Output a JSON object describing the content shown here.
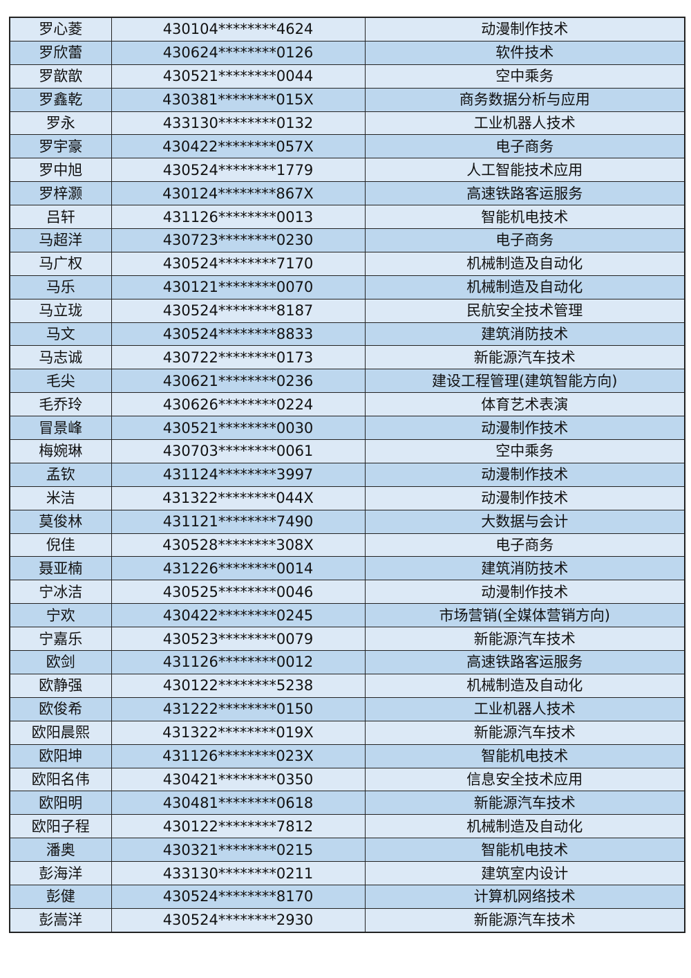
{
  "rows": [
    [
      "罗心菱",
      "430104********4624",
      "动漫制作技术"
    ],
    [
      "罗欣蕾",
      "430624********0126",
      "软件技术"
    ],
    [
      "罗歆歆",
      "430521********0044",
      "空中乘务"
    ],
    [
      "罗鑫乾",
      "430381********015X",
      "商务数据分析与应用"
    ],
    [
      "罗永",
      "433130********0132",
      "工业机器人技术"
    ],
    [
      "罗宇豪",
      "430422********057X",
      "电子商务"
    ],
    [
      "罗中旭",
      "430524********1779",
      "人工智能技术应用"
    ],
    [
      "罗梓灏",
      "430124********867X",
      "高速铁路客运服务"
    ],
    [
      "吕轩",
      "431126********0013",
      "智能机电技术"
    ],
    [
      "马超洋",
      "430723********0230",
      "电子商务"
    ],
    [
      "马广权",
      "430524********7170",
      "机械制造及自动化"
    ],
    [
      "马乐",
      "430121********0070",
      "机械制造及自动化"
    ],
    [
      "马立珑",
      "430524********8187",
      "民航安全技术管理"
    ],
    [
      "马文",
      "430524********8833",
      "建筑消防技术"
    ],
    [
      "马志诚",
      "430722********0173",
      "新能源汽车技术"
    ],
    [
      "毛尖",
      "430621********0236",
      "建设工程管理(建筑智能方向)"
    ],
    [
      "毛乔玲",
      "430626********0224",
      "体育艺术表演"
    ],
    [
      "冒景峰",
      "430521********0030",
      "动漫制作技术"
    ],
    [
      "梅婉琳",
      "430703********0061",
      "空中乘务"
    ],
    [
      "孟钦",
      "431124********3997",
      "动漫制作技术"
    ],
    [
      "米洁",
      "431322********044X",
      "动漫制作技术"
    ],
    [
      "莫俊林",
      "431121********7490",
      "大数据与会计"
    ],
    [
      "倪佳",
      "430528********308X",
      "电子商务"
    ],
    [
      "聂亚楠",
      "431226********0014",
      "建筑消防技术"
    ],
    [
      "宁冰洁",
      "430525********0046",
      "动漫制作技术"
    ],
    [
      "宁欢",
      "430422********0245",
      "市场营销(全媒体营销方向)"
    ],
    [
      "宁嘉乐",
      "430523********0079",
      "新能源汽车技术"
    ],
    [
      "欧剑",
      "431126********0012",
      "高速铁路客运服务"
    ],
    [
      "欧静强",
      "430122********5238",
      "机械制造及自动化"
    ],
    [
      "欧俊希",
      "431222********0150",
      "工业机器人技术"
    ],
    [
      "欧阳晨熙",
      "431322********019X",
      "新能源汽车技术"
    ],
    [
      "欧阳坤",
      "431126********023X",
      "智能机电技术"
    ],
    [
      "欧阳名伟",
      "430421********0350",
      "信息安全技术应用"
    ],
    [
      "欧阳明",
      "430481********0618",
      "新能源汽车技术"
    ],
    [
      "欧阳子程",
      "430122********7812",
      "机械制造及自动化"
    ],
    [
      "潘奥",
      "430321********0215",
      "智能机电技术"
    ],
    [
      "彭海洋",
      "433130********0211",
      "建筑室内设计"
    ],
    [
      "彭健",
      "430524********8170",
      "计算机网络技术"
    ],
    [
      "彭嵩洋",
      "430524********2930",
      "新能源汽车技术"
    ]
  ],
  "colors": {
    "row_light": "#dce9f6",
    "row_dark": "#bdd7ee",
    "border": "#222222"
  }
}
